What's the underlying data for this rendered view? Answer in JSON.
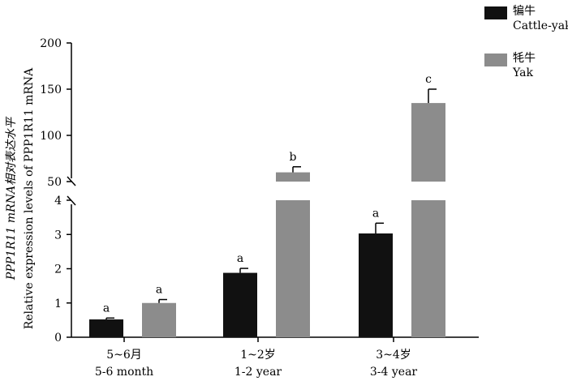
{
  "chart_data": {
    "type": "bar",
    "title": "",
    "ylabel_lines": [
      "PPP1R11 mRNA相对表达水平",
      "Relative expression levels of PPP1R11 mRNA"
    ],
    "xlabel": "",
    "broken_axis": true,
    "lower_ylim": [
      0,
      4
    ],
    "upper_ylim": [
      50,
      200
    ],
    "lower_ticks": [
      "0",
      "1",
      "2",
      "3",
      "4"
    ],
    "upper_ticks": [
      "50",
      "100",
      "150",
      "200"
    ],
    "categories": [
      {
        "zh": "5~6月",
        "en": "5-6 month"
      },
      {
        "zh": "1~2岁",
        "en": "1-2 year"
      },
      {
        "zh": "3~4岁",
        "en": "3-4 year"
      }
    ],
    "series": [
      {
        "name_zh": "犏牛",
        "name_en": "Cattle-yak",
        "color": "#111111",
        "values": [
          0.52,
          1.88,
          3.03
        ],
        "errors": [
          0.04,
          0.13,
          0.3
        ],
        "letters": [
          "a",
          "a",
          "a"
        ]
      },
      {
        "name_zh": "牦牛",
        "name_en": "Yak",
        "color": "#8c8c8c",
        "values": [
          1.0,
          60,
          135
        ],
        "errors": [
          0.1,
          6,
          15
        ],
        "letters": [
          "a",
          "b",
          "c"
        ]
      }
    ]
  }
}
